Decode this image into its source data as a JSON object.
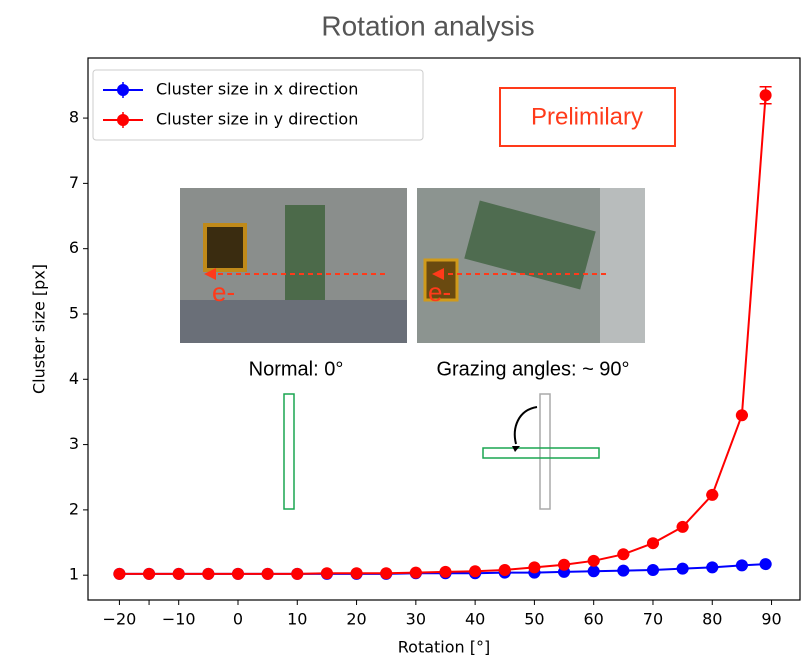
{
  "chart_data": {
    "type": "line",
    "title": "Rotation analysis",
    "xlabel": "Rotation [°]",
    "ylabel": "Cluster size [px]",
    "x": [
      -20,
      -15,
      -10,
      -5,
      0,
      5,
      10,
      15,
      20,
      25,
      30,
      35,
      40,
      45,
      50,
      55,
      60,
      65,
      70,
      75,
      80,
      85,
      89
    ],
    "series": [
      {
        "name": "Cluster size in x direction",
        "color": "#0000ff",
        "values": [
          1.02,
          1.02,
          1.02,
          1.02,
          1.02,
          1.02,
          1.02,
          1.02,
          1.02,
          1.02,
          1.03,
          1.03,
          1.03,
          1.04,
          1.04,
          1.05,
          1.06,
          1.07,
          1.08,
          1.1,
          1.12,
          1.15,
          1.17
        ],
        "errors": [
          0.01,
          0.01,
          0.01,
          0.01,
          0.01,
          0.01,
          0.01,
          0.01,
          0.01,
          0.01,
          0.01,
          0.01,
          0.01,
          0.01,
          0.01,
          0.01,
          0.01,
          0.01,
          0.01,
          0.01,
          0.01,
          0.01,
          0.01
        ]
      },
      {
        "name": "Cluster size in y direction",
        "color": "#ff0000",
        "values": [
          1.02,
          1.02,
          1.02,
          1.02,
          1.02,
          1.02,
          1.02,
          1.03,
          1.03,
          1.03,
          1.04,
          1.05,
          1.06,
          1.08,
          1.12,
          1.16,
          1.22,
          1.32,
          1.49,
          1.74,
          2.23,
          3.45,
          8.35
        ],
        "errors": [
          0.01,
          0.01,
          0.01,
          0.01,
          0.01,
          0.01,
          0.01,
          0.01,
          0.01,
          0.01,
          0.01,
          0.01,
          0.01,
          0.01,
          0.01,
          0.01,
          0.01,
          0.01,
          0.01,
          0.01,
          0.01,
          0.01,
          0.13
        ]
      }
    ],
    "xlim": [
      -25.3,
      94.8
    ],
    "ylim": [
      0.62,
      8.92
    ],
    "xticks": [
      {
        "value": -20,
        "label": "−20"
      },
      {
        "value": -15,
        "label": ""
      },
      {
        "value": -10,
        "label": "−10"
      },
      0,
      10,
      20,
      30,
      40,
      50,
      60,
      70,
      80,
      90
    ],
    "yticks": [
      1,
      2,
      3,
      4,
      5,
      6,
      7,
      8
    ],
    "legend": "upper left",
    "annotations": [
      "Prelimilary",
      "Normal: 0°",
      "Grazing angles: ~ 90°",
      "e-",
      "e-"
    ]
  }
}
